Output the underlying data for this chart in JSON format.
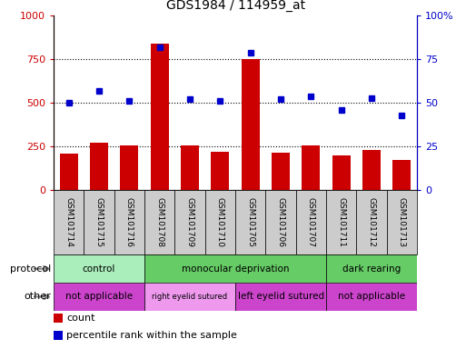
{
  "title": "GDS1984 / 114959_at",
  "samples": [
    "GSM101714",
    "GSM101715",
    "GSM101716",
    "GSM101708",
    "GSM101709",
    "GSM101710",
    "GSM101705",
    "GSM101706",
    "GSM101707",
    "GSM101711",
    "GSM101712",
    "GSM101713"
  ],
  "counts": [
    210,
    270,
    255,
    840,
    255,
    220,
    750,
    215,
    255,
    200,
    230,
    175
  ],
  "percentiles": [
    50,
    57,
    51,
    82,
    52,
    51,
    79,
    52,
    54,
    46,
    53,
    43
  ],
  "bar_color": "#cc0000",
  "dot_color": "#0000cc",
  "ylim_left": [
    0,
    1000
  ],
  "ylim_right": [
    0,
    100
  ],
  "yticks_left": [
    0,
    250,
    500,
    750,
    1000
  ],
  "yticks_right": [
    0,
    25,
    50,
    75,
    100
  ],
  "grid_lines": [
    250,
    500,
    750
  ],
  "protocol_groups": [
    {
      "label": "control",
      "start": 0,
      "end": 3,
      "color": "#aaeebb"
    },
    {
      "label": "monocular deprivation",
      "start": 3,
      "end": 9,
      "color": "#66cc66"
    },
    {
      "label": "dark rearing",
      "start": 9,
      "end": 12,
      "color": "#66cc66"
    }
  ],
  "other_groups": [
    {
      "label": "not applicable",
      "start": 0,
      "end": 3,
      "color": "#cc44cc"
    },
    {
      "label": "right eyelid sutured",
      "start": 3,
      "end": 6,
      "color": "#ee99ee"
    },
    {
      "label": "left eyelid sutured",
      "start": 6,
      "end": 9,
      "color": "#cc44cc"
    },
    {
      "label": "not applicable",
      "start": 9,
      "end": 12,
      "color": "#cc44cc"
    }
  ],
  "sample_box_color": "#cccccc",
  "left_axis_color": "#cc0000",
  "right_axis_color": "#0000cc",
  "legend_items": [
    {
      "label": "count",
      "color": "#cc0000"
    },
    {
      "label": "percentile rank within the sample",
      "color": "#0000cc"
    }
  ]
}
